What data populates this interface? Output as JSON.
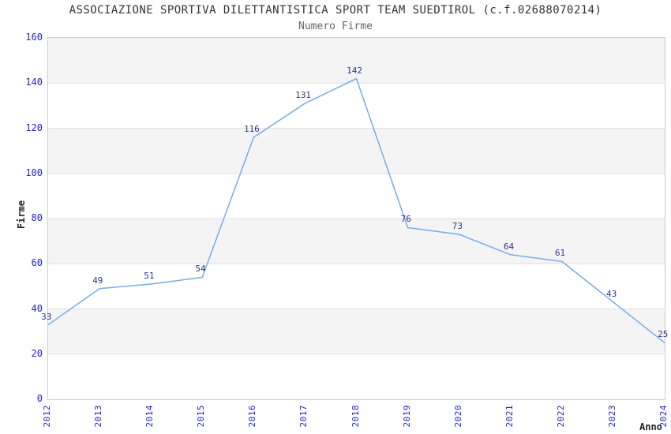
{
  "chart_data": {
    "type": "line",
    "title": "ASSOCIAZIONE SPORTIVA DILETTANTISTICA SPORT TEAM SUEDTIROL (c.f.02688070214)",
    "subtitle": "Numero Firme",
    "xlabel": "Anno",
    "ylabel": "Firme",
    "x": [
      "2012",
      "2013",
      "2014",
      "2015",
      "2016",
      "2017",
      "2018",
      "2019",
      "2020",
      "2021",
      "2022",
      "2023",
      "2024"
    ],
    "values": [
      33,
      49,
      51,
      54,
      116,
      131,
      142,
      76,
      73,
      64,
      61,
      43,
      25
    ],
    "ylim": [
      0,
      160
    ],
    "ytick_step": 20,
    "grid": true,
    "legend": false,
    "band_pattern": "alternating horizontal gray/white bands, gray on top band",
    "colors": {
      "line": "#78abe8",
      "band": "#f4f4f4",
      "gridline": "#e0e0e0",
      "plot_border": "#cccccc",
      "tick_label": "#2222cc",
      "data_label": "#333380",
      "title": "#333333",
      "subtitle": "#666666",
      "axis_title": "#222222",
      "background": "#ffffff"
    }
  }
}
